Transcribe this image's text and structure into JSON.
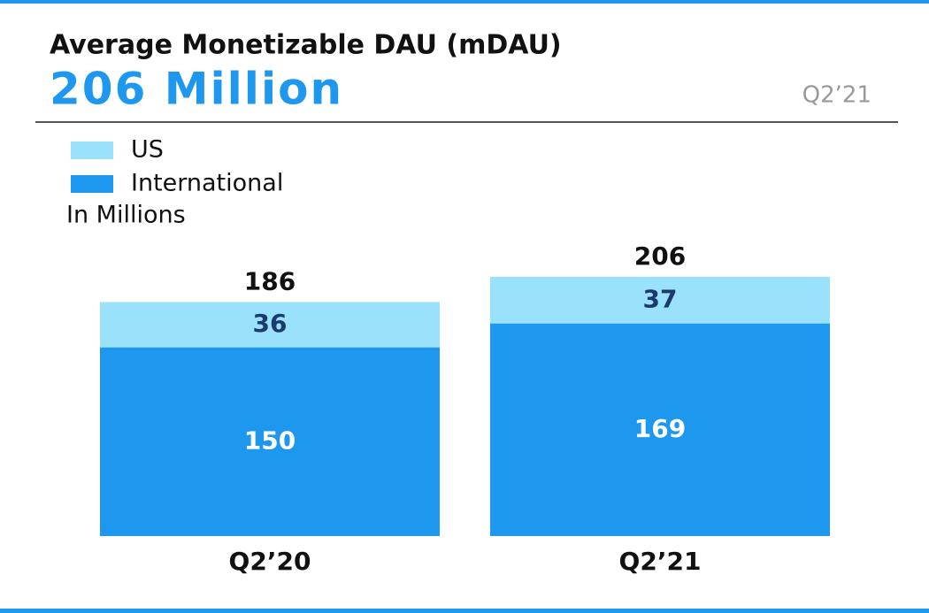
{
  "chart_data": {
    "type": "stacked-bar",
    "title": "Average Monetizable DAU (mDAU)",
    "headline": "206 Million",
    "period": "Q2’21",
    "subtitle": "In Millions",
    "categories": [
      "Q2’20",
      "Q2’21"
    ],
    "series": [
      {
        "name": "International",
        "color": "#1e98ee",
        "values": [
          150,
          169
        ]
      },
      {
        "name": "US",
        "color": "#9ae1fb",
        "values": [
          36,
          37
        ]
      }
    ],
    "totals": [
      186,
      206
    ]
  }
}
